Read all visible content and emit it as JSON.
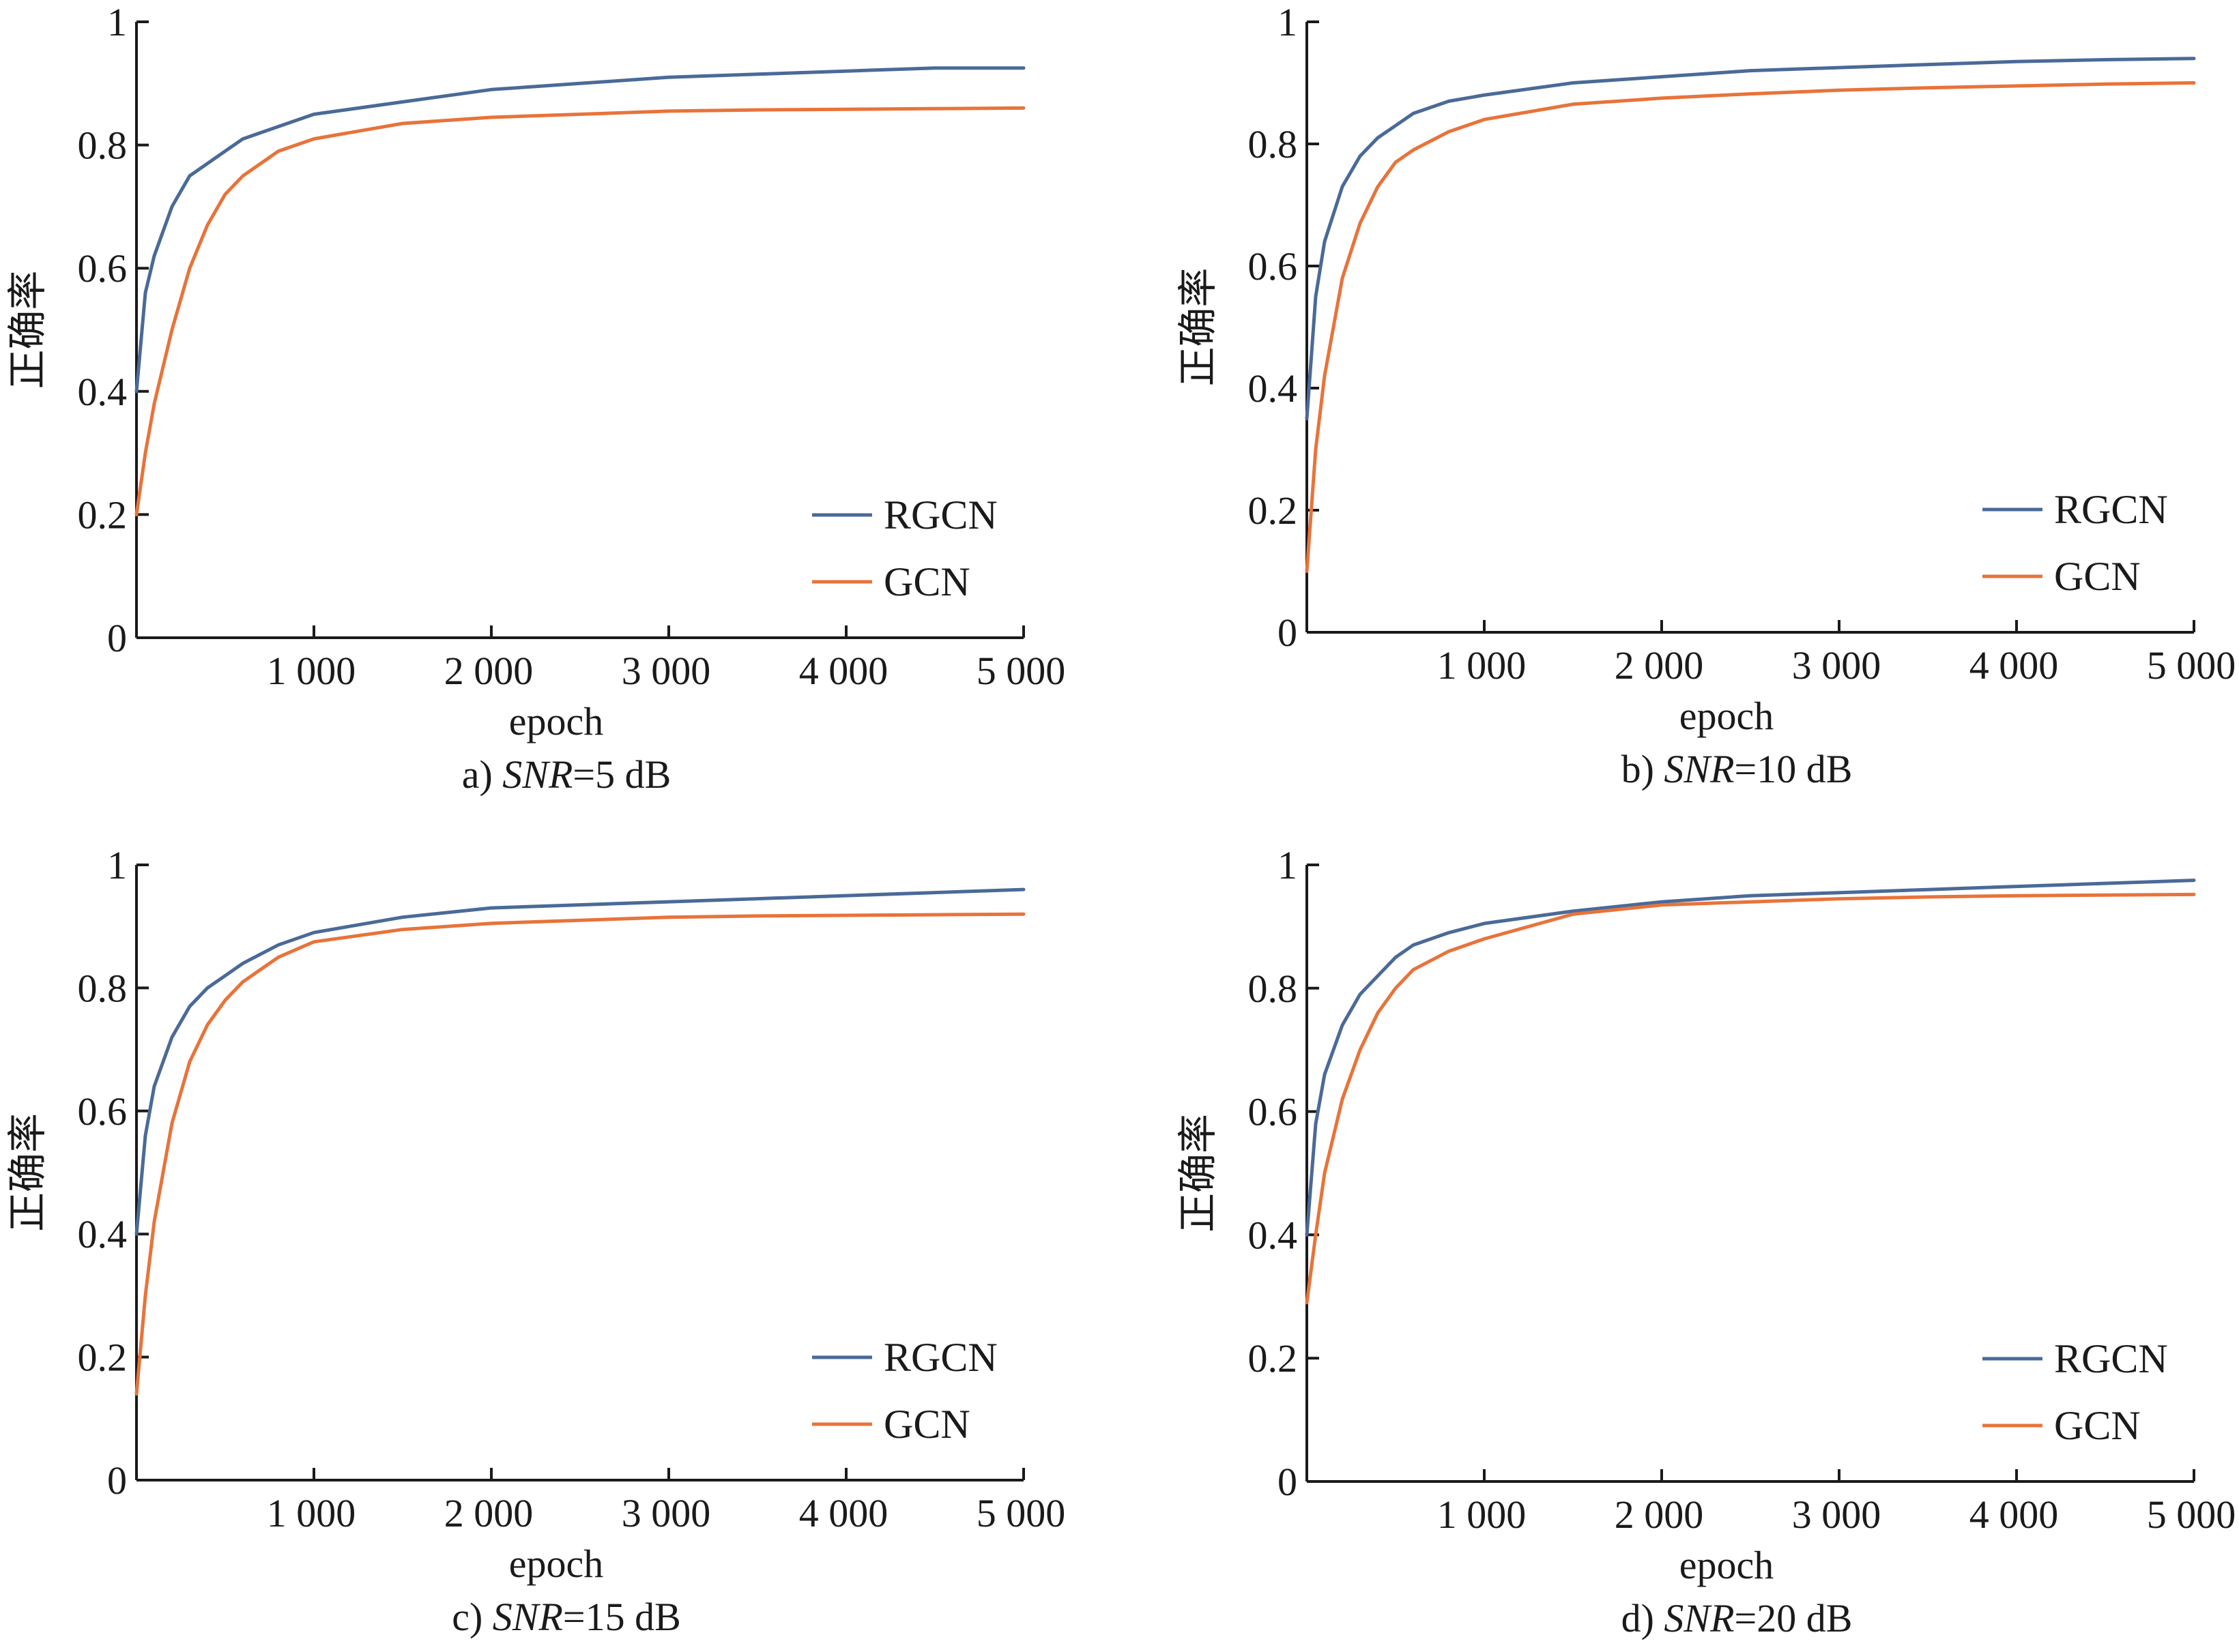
{
  "chart_data": [
    {
      "type": "line",
      "caption_prefix": "a) ",
      "caption_snr": "SNR",
      "caption_suffix": "=5 dB",
      "xlabel": "epoch",
      "ylabel": "正确率",
      "xlim": [
        0,
        5000
      ],
      "ylim": [
        0,
        1
      ],
      "xticks": [
        1000,
        2000,
        3000,
        4000,
        5000
      ],
      "xtick_labels": [
        "1 000",
        "2 000",
        "3 000",
        "4 000",
        "5 000"
      ],
      "yticks": [
        0,
        0.2,
        0.4,
        0.6,
        0.8,
        1
      ],
      "ytick_labels": [
        "0",
        "0.2",
        "0.4",
        "0.6",
        "0.8",
        "1"
      ],
      "legend_position": "lower-right",
      "series": [
        {
          "name": "RGCN",
          "color": "#4a6a98",
          "x": [
            0,
            50,
            100,
            200,
            300,
            400,
            500,
            600,
            800,
            1000,
            1500,
            2000,
            2500,
            3000,
            3500,
            4000,
            4500,
            5000
          ],
          "y": [
            0.4,
            0.56,
            0.62,
            0.7,
            0.75,
            0.77,
            0.79,
            0.81,
            0.83,
            0.85,
            0.87,
            0.89,
            0.9,
            0.91,
            0.915,
            0.92,
            0.925,
            0.925
          ]
        },
        {
          "name": "GCN",
          "color": "#e8733a",
          "x": [
            0,
            50,
            100,
            200,
            300,
            400,
            500,
            600,
            800,
            1000,
            1500,
            2000,
            2500,
            3000,
            3500,
            4000,
            4500,
            5000
          ],
          "y": [
            0.2,
            0.3,
            0.38,
            0.5,
            0.6,
            0.67,
            0.72,
            0.75,
            0.79,
            0.81,
            0.835,
            0.845,
            0.85,
            0.855,
            0.857,
            0.858,
            0.859,
            0.86
          ]
        }
      ]
    },
    {
      "type": "line",
      "caption_prefix": "b) ",
      "caption_snr": "SNR",
      "caption_suffix": "=10 dB",
      "xlabel": "epoch",
      "ylabel": "正确率",
      "xlim": [
        0,
        5000
      ],
      "ylim": [
        0,
        1
      ],
      "xticks": [
        1000,
        2000,
        3000,
        4000,
        5000
      ],
      "xtick_labels": [
        "1 000",
        "2 000",
        "3 000",
        "4 000",
        "5 000"
      ],
      "yticks": [
        0,
        0.2,
        0.4,
        0.6,
        0.8,
        1
      ],
      "ytick_labels": [
        "0",
        "0.2",
        "0.4",
        "0.6",
        "0.8",
        "1"
      ],
      "legend_position": "lower-right",
      "series": [
        {
          "name": "RGCN",
          "color": "#4a6a98",
          "x": [
            0,
            50,
            100,
            200,
            300,
            400,
            500,
            600,
            800,
            1000,
            1500,
            2000,
            2500,
            3000,
            3500,
            4000,
            4500,
            5000
          ],
          "y": [
            0.35,
            0.55,
            0.64,
            0.73,
            0.78,
            0.81,
            0.83,
            0.85,
            0.87,
            0.88,
            0.9,
            0.91,
            0.92,
            0.925,
            0.93,
            0.935,
            0.938,
            0.94
          ]
        },
        {
          "name": "GCN",
          "color": "#e8733a",
          "x": [
            0,
            50,
            100,
            200,
            300,
            400,
            500,
            600,
            800,
            1000,
            1500,
            2000,
            2500,
            3000,
            3500,
            4000,
            4500,
            5000
          ],
          "y": [
            0.1,
            0.3,
            0.42,
            0.58,
            0.67,
            0.73,
            0.77,
            0.79,
            0.82,
            0.84,
            0.865,
            0.875,
            0.882,
            0.888,
            0.892,
            0.895,
            0.898,
            0.9
          ]
        }
      ]
    },
    {
      "type": "line",
      "caption_prefix": "c) ",
      "caption_snr": "SNR",
      "caption_suffix": "=15 dB",
      "xlabel": "epoch",
      "ylabel": "正确率",
      "xlim": [
        0,
        5000
      ],
      "ylim": [
        0,
        1
      ],
      "xticks": [
        1000,
        2000,
        3000,
        4000,
        5000
      ],
      "xtick_labels": [
        "1 000",
        "2 000",
        "3 000",
        "4 000",
        "5 000"
      ],
      "yticks": [
        0,
        0.2,
        0.4,
        0.6,
        0.8,
        1
      ],
      "ytick_labels": [
        "0",
        "0.2",
        "0.4",
        "0.6",
        "0.8",
        "1"
      ],
      "legend_position": "lower-right",
      "series": [
        {
          "name": "RGCN",
          "color": "#4a6a98",
          "x": [
            0,
            50,
            100,
            200,
            300,
            400,
            500,
            600,
            800,
            1000,
            1500,
            2000,
            2500,
            3000,
            3500,
            4000,
            4500,
            5000
          ],
          "y": [
            0.4,
            0.56,
            0.64,
            0.72,
            0.77,
            0.8,
            0.82,
            0.84,
            0.87,
            0.89,
            0.915,
            0.93,
            0.935,
            0.94,
            0.945,
            0.95,
            0.955,
            0.96
          ]
        },
        {
          "name": "GCN",
          "color": "#e8733a",
          "x": [
            0,
            50,
            100,
            200,
            300,
            400,
            500,
            600,
            800,
            1000,
            1500,
            2000,
            2500,
            3000,
            3500,
            4000,
            4500,
            5000
          ],
          "y": [
            0.14,
            0.3,
            0.42,
            0.58,
            0.68,
            0.74,
            0.78,
            0.81,
            0.85,
            0.875,
            0.895,
            0.905,
            0.91,
            0.915,
            0.917,
            0.918,
            0.919,
            0.92
          ]
        }
      ]
    },
    {
      "type": "line",
      "caption_prefix": "d) ",
      "caption_snr": "SNR",
      "caption_suffix": "=20 dB",
      "xlabel": "epoch",
      "ylabel": "正确率",
      "xlim": [
        0,
        5000
      ],
      "ylim": [
        0,
        1
      ],
      "xticks": [
        1000,
        2000,
        3000,
        4000,
        5000
      ],
      "xtick_labels": [
        "1 000",
        "2 000",
        "3 000",
        "4 000",
        "5 000"
      ],
      "yticks": [
        0,
        0.2,
        0.4,
        0.6,
        0.8,
        1
      ],
      "ytick_labels": [
        "0",
        "0.2",
        "0.4",
        "0.6",
        "0.8",
        "1"
      ],
      "legend_position": "lower-right",
      "series": [
        {
          "name": "RGCN",
          "color": "#4a6a98",
          "x": [
            0,
            50,
            100,
            200,
            300,
            400,
            500,
            600,
            800,
            1000,
            1500,
            2000,
            2500,
            3000,
            3500,
            4000,
            4500,
            5000
          ],
          "y": [
            0.4,
            0.58,
            0.66,
            0.74,
            0.79,
            0.82,
            0.85,
            0.87,
            0.89,
            0.905,
            0.925,
            0.94,
            0.95,
            0.955,
            0.96,
            0.965,
            0.97,
            0.975
          ]
        },
        {
          "name": "GCN",
          "color": "#e8733a",
          "x": [
            0,
            50,
            100,
            200,
            300,
            400,
            500,
            600,
            800,
            1000,
            1500,
            2000,
            2500,
            3000,
            3500,
            4000,
            4500,
            5000
          ],
          "y": [
            0.29,
            0.4,
            0.5,
            0.62,
            0.7,
            0.76,
            0.8,
            0.83,
            0.86,
            0.88,
            0.92,
            0.935,
            0.94,
            0.945,
            0.948,
            0.95,
            0.951,
            0.952
          ]
        }
      ]
    }
  ]
}
